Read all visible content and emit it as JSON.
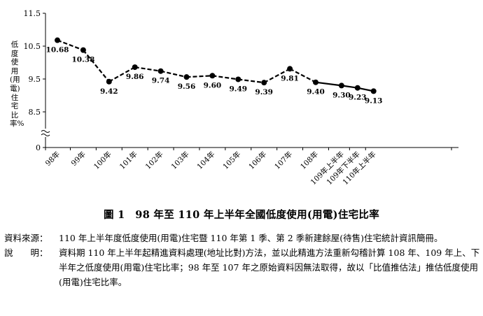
{
  "chart_data": {
    "type": "line",
    "title": "圖 1　98 年至 110 年上半年全國低度使用(用電)住宅比率",
    "ylabel": "低度使用(用電)住宅比率%",
    "xlabel": "",
    "ylim": [
      8.5,
      11.5
    ],
    "yticks": [
      "11.5",
      "10.5",
      "9.5",
      "8.5",
      "0"
    ],
    "axis_break": true,
    "categories": [
      "98年",
      "99年",
      "100年",
      "101年",
      "102年",
      "103年",
      "104年",
      "105年",
      "106年",
      "107年",
      "108年",
      "109年上半年",
      "109年下半年",
      "110年上半年"
    ],
    "values": [
      10.68,
      10.38,
      9.42,
      9.86,
      9.74,
      9.56,
      9.6,
      9.49,
      9.39,
      9.81,
      9.4,
      9.3,
      9.23,
      9.13
    ],
    "value_labels": [
      "10.68",
      "10.38",
      "9.42",
      "9.86",
      "9.74",
      "9.56",
      "9.60",
      "9.49",
      "9.39",
      "9.81",
      "9.40",
      "9.30",
      "9.23",
      "9.13"
    ],
    "dashed_segment_to_category": "108年",
    "line_color": "#000000",
    "grid": false,
    "legend": "none"
  },
  "notes": {
    "source_label": "資料來源：",
    "source_text": "110 年上半年度低度使用(用電)住宅暨 110 年第 1 季、第 2 季新建餘屋(待售)住宅統計資訊簡冊。",
    "desc_label": "說　　明：",
    "desc_text": "資料期 110 年上半年起精進資料處理(地址比對)方法，並以此精進方法重新勾稽計算 108 年、109 年上、下半年之低度使用(用電)住宅比率；98 年至 107 年之原始資料因無法取得，故以「比值推估法」推估低度使用(用電)住宅比率。"
  }
}
